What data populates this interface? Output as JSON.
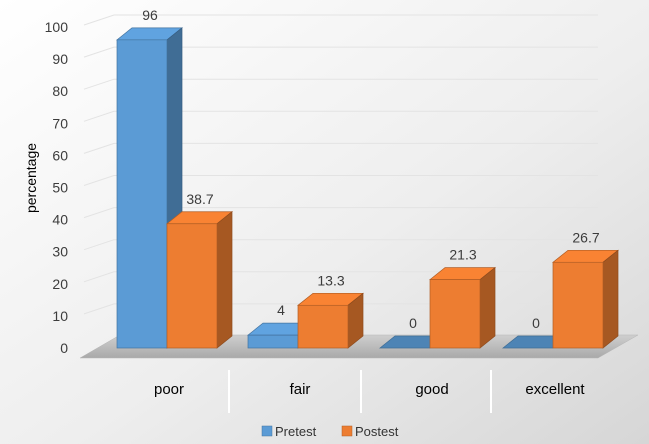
{
  "chart_data": {
    "type": "bar",
    "title": "",
    "xlabel": "",
    "ylabel": "percentage",
    "ylim": [
      0,
      100
    ],
    "yticks": [
      0,
      10,
      20,
      30,
      40,
      50,
      60,
      70,
      80,
      90,
      100
    ],
    "categories": [
      "poor",
      "fair",
      "good",
      "excellent"
    ],
    "series": [
      {
        "name": "Pretest",
        "values": [
          96,
          4,
          0,
          0
        ],
        "labels": [
          "96",
          "4",
          "0",
          "0"
        ],
        "color": "#5b9bd5"
      },
      {
        "name": "Postest",
        "values": [
          38.7,
          13.3,
          21.3,
          26.7
        ],
        "labels": [
          "38.7",
          "13.3",
          "21.3",
          "26.7"
        ],
        "color": "#ed7d31"
      }
    ],
    "grid": true,
    "style": "3d-clustered-column",
    "legend_position": "bottom"
  }
}
